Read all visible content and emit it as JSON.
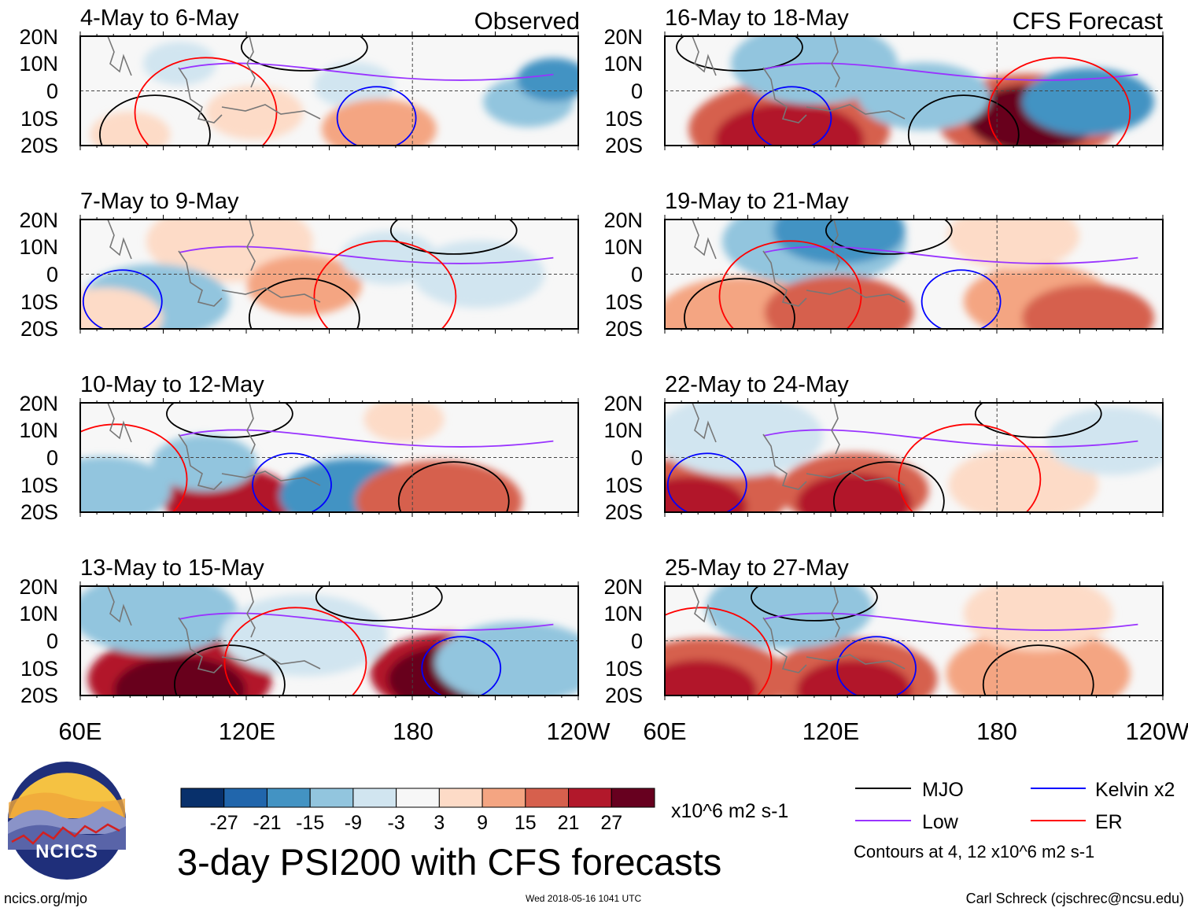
{
  "figure": {
    "title": "3-day PSI200 with CFS forecasts",
    "left_column_label": "Observed",
    "right_column_label": "CFS Forecast",
    "colorbar_units": "x10^6 m2 s-1",
    "contour_note": "Contours at 4, 12 x10^6 m2 s-1",
    "website": "ncics.org/mjo",
    "timestamp": "Wed 2018-05-16 1041 UTC",
    "credit": "Carl Schreck (cjschrec@ncsu.edu)",
    "logo_text": "NCICS"
  },
  "axes": {
    "lat_labels": [
      "20N",
      "10N",
      "0",
      "10S",
      "20S"
    ],
    "lon_labels": [
      "60E",
      "120E",
      "180",
      "120W"
    ]
  },
  "panels": [
    {
      "period": "4-May to 6-May",
      "kind": "observed"
    },
    {
      "period": "7-May to 9-May",
      "kind": "observed"
    },
    {
      "period": "10-May to 12-May",
      "kind": "observed"
    },
    {
      "period": "13-May to 15-May",
      "kind": "observed"
    },
    {
      "period": "16-May to 18-May",
      "kind": "forecast"
    },
    {
      "period": "19-May to 21-May",
      "kind": "forecast"
    },
    {
      "period": "22-May to 24-May",
      "kind": "forecast"
    },
    {
      "period": "25-May to 27-May",
      "kind": "forecast"
    }
  ],
  "colorbar": {
    "colors": [
      "#08306b",
      "#2166ac",
      "#4393c3",
      "#92c5de",
      "#d1e5f0",
      "#f7f7f7",
      "#fddbc7",
      "#f4a582",
      "#d6604d",
      "#b2182b",
      "#67001f"
    ],
    "ticks": [
      "-27",
      "-21",
      "-15",
      "-9",
      "-3",
      "3",
      "9",
      "15",
      "21",
      "27"
    ]
  },
  "legend": [
    {
      "label": "MJO",
      "color": "#000000"
    },
    {
      "label": "Kelvin x2",
      "color": "#0000ff"
    },
    {
      "label": "Low",
      "color": "#9933ff"
    },
    {
      "label": "ER",
      "color": "#ff0000"
    }
  ]
}
